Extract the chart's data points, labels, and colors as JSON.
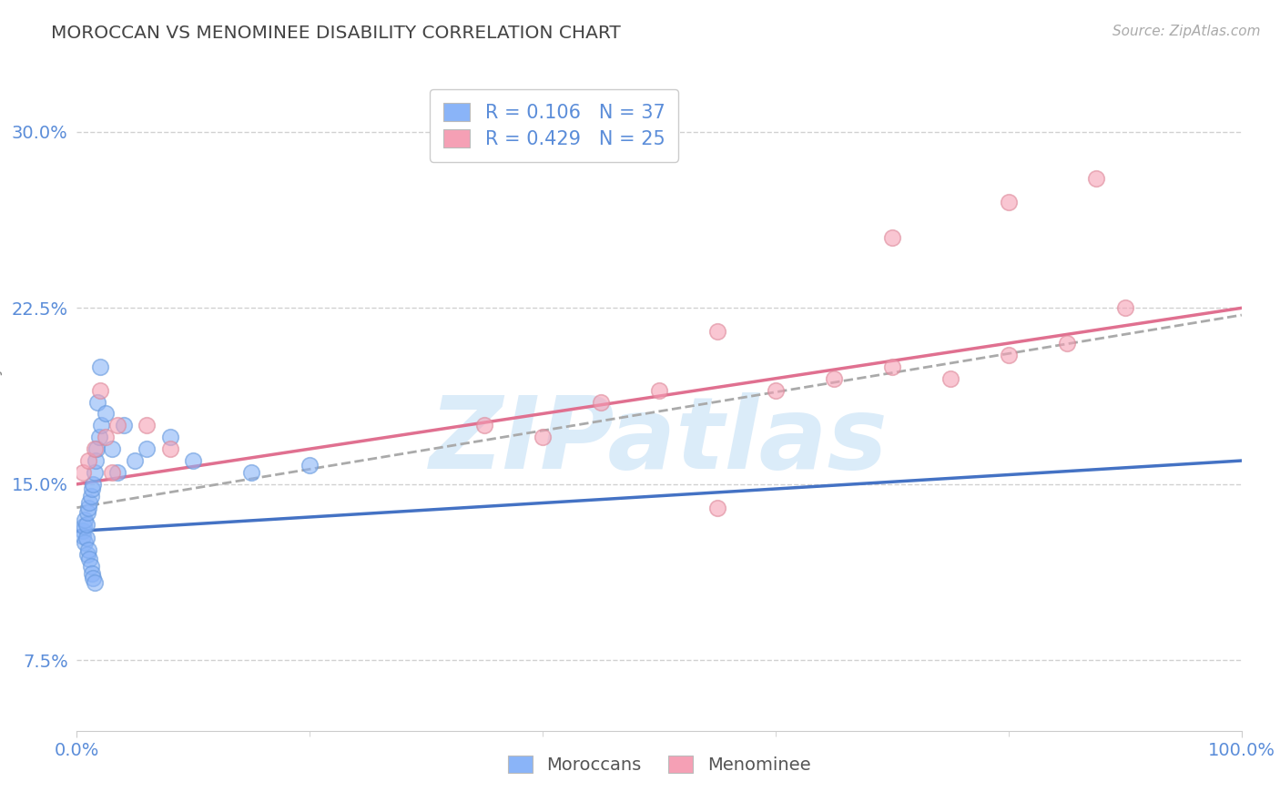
{
  "title": "MOROCCAN VS MENOMINEE DISABILITY CORRELATION CHART",
  "source_text": "Source: ZipAtlas.com",
  "ylabel": "Disability",
  "xlim": [
    0.0,
    1.0
  ],
  "ylim": [
    0.045,
    0.325
  ],
  "yticks": [
    0.075,
    0.15,
    0.225,
    0.3
  ],
  "ytick_labels": [
    "7.5%",
    "15.0%",
    "22.5%",
    "30.0%"
  ],
  "xticks": [
    0.0,
    1.0
  ],
  "xtick_labels": [
    "0.0%",
    "100.0%"
  ],
  "moroccan_x": [
    0.005,
    0.005,
    0.006,
    0.007,
    0.007,
    0.008,
    0.008,
    0.009,
    0.009,
    0.01,
    0.01,
    0.011,
    0.011,
    0.012,
    0.012,
    0.013,
    0.013,
    0.014,
    0.014,
    0.015,
    0.015,
    0.016,
    0.017,
    0.018,
    0.019,
    0.02,
    0.021,
    0.025,
    0.03,
    0.035,
    0.04,
    0.05,
    0.06,
    0.08,
    0.1,
    0.15,
    0.2
  ],
  "moroccan_y": [
    0.13,
    0.128,
    0.132,
    0.125,
    0.135,
    0.127,
    0.133,
    0.12,
    0.138,
    0.122,
    0.14,
    0.118,
    0.142,
    0.115,
    0.145,
    0.112,
    0.148,
    0.11,
    0.15,
    0.108,
    0.155,
    0.16,
    0.165,
    0.185,
    0.17,
    0.2,
    0.175,
    0.18,
    0.165,
    0.155,
    0.175,
    0.16,
    0.165,
    0.17,
    0.16,
    0.155,
    0.158
  ],
  "menominee_x": [
    0.005,
    0.01,
    0.015,
    0.02,
    0.025,
    0.03,
    0.035,
    0.06,
    0.08,
    0.35,
    0.4,
    0.45,
    0.5,
    0.55,
    0.6,
    0.65,
    0.7,
    0.75,
    0.8,
    0.85,
    0.875,
    0.9,
    0.55,
    0.7,
    0.8
  ],
  "menominee_y": [
    0.155,
    0.16,
    0.165,
    0.19,
    0.17,
    0.155,
    0.175,
    0.175,
    0.165,
    0.175,
    0.17,
    0.185,
    0.19,
    0.14,
    0.19,
    0.195,
    0.2,
    0.195,
    0.205,
    0.21,
    0.28,
    0.225,
    0.215,
    0.255,
    0.27
  ],
  "moroccan_color": "#8ab4f8",
  "moroccan_edge_color": "#6699dd",
  "menominee_color": "#f5a0b5",
  "menominee_edge_color": "#dd8899",
  "moroccan_R": 0.106,
  "moroccan_N": 37,
  "menominee_R": 0.429,
  "menominee_N": 25,
  "blue_line_color": "#4472c4",
  "pink_line_color": "#e07090",
  "dashed_line_color": "#aaaaaa",
  "grid_color": "#cccccc",
  "title_color": "#444444",
  "tick_color": "#5b8dd9",
  "ylabel_color": "#888888",
  "watermark_text": "ZIPatlas",
  "watermark_color": "#cce4f7",
  "background_color": "#ffffff",
  "source_color": "#aaaaaa"
}
